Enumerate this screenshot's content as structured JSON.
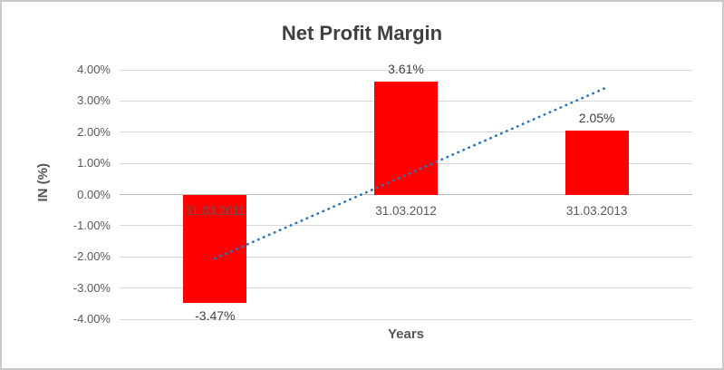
{
  "chart_data": {
    "type": "bar",
    "title": "Net Profit Margin",
    "categories": [
      "31.03.2011",
      "31.03.2012",
      "31.03.2013"
    ],
    "values": [
      -3.47,
      3.61,
      2.05
    ],
    "data_labels": [
      "-3.47%",
      "3.61%",
      "2.05%"
    ],
    "xlabel": "Years",
    "ylabel": "IN (%)",
    "ylim": [
      -4,
      4
    ],
    "ytick_step": 1,
    "ytick_labels": [
      "4.00%",
      "3.00%",
      "2.00%",
      "1.00%",
      "0.00%",
      "-1.00%",
      "-2.00%",
      "-3.00%",
      "-4.00%"
    ],
    "grid": true,
    "legend": false,
    "bar_color": "#ff0000",
    "trendline": {
      "type": "linear",
      "style": "dotted",
      "color": "#2e75b6",
      "start_value": -2.05,
      "end_value": 3.45
    }
  }
}
